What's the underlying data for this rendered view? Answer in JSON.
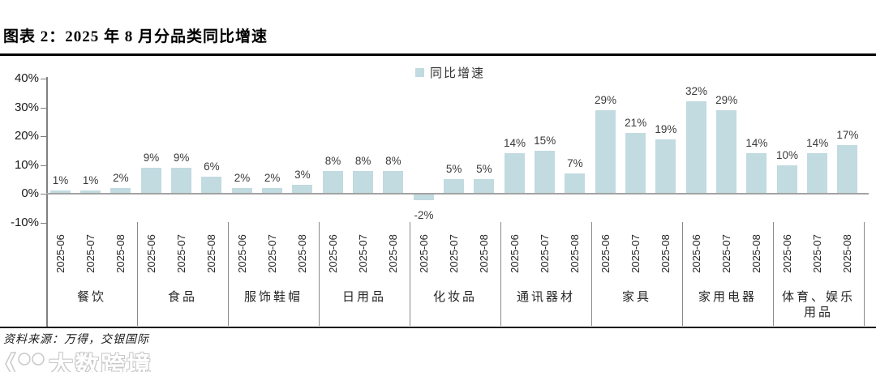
{
  "figure": {
    "title": "图表 2：2025 年 8 月分品类同比增速",
    "source": "资料来源：万得，交银国际",
    "watermark": "大数跨境"
  },
  "chart_data": {
    "type": "bar",
    "title": "2025 年 8 月分品类同比增速",
    "legend_label": "同比增速",
    "legend_position": "top-center",
    "grid": false,
    "bar_color": "#c1dbe0",
    "unit": "%",
    "categories": [
      "餐饮",
      "食品",
      "服饰鞋帽",
      "日用品",
      "化妆品",
      "通讯器材",
      "家具",
      "家用电器",
      "体育、娱乐用品"
    ],
    "x_sub_labels": [
      "2025-06",
      "2025-07",
      "2025-08"
    ],
    "series": [
      {
        "name": "同比增速",
        "values_by_category": [
          [
            1,
            1,
            2
          ],
          [
            9,
            9,
            6
          ],
          [
            2,
            2,
            3
          ],
          [
            8,
            8,
            8
          ],
          [
            -2,
            5,
            5
          ],
          [
            14,
            15,
            7
          ],
          [
            29,
            21,
            19
          ],
          [
            32,
            29,
            14
          ],
          [
            10,
            14,
            17
          ]
        ]
      }
    ],
    "y_axis": {
      "ticks": [
        "40%",
        "30%",
        "20%",
        "10%",
        "0%",
        "-10%"
      ],
      "tick_values": [
        40,
        30,
        20,
        10,
        0,
        -10
      ],
      "min": -10,
      "max": 40
    }
  }
}
